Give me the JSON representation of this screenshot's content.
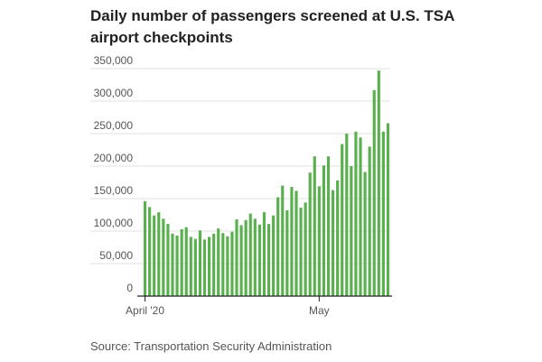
{
  "chart_data": {
    "type": "bar",
    "title": "Daily number of passengers screened at U.S. TSA airport checkpoints",
    "source": "Source: Transportation Security Administration",
    "bar_color": "#5aaf4e",
    "gridline_color": "#e2e2e2",
    "axis_color": "#222222",
    "text_color": "#555555",
    "ylim": [
      0,
      350000
    ],
    "y_ticks": [
      0,
      50000,
      100000,
      150000,
      200000,
      250000,
      300000,
      350000
    ],
    "y_tick_labels": [
      "0",
      "50,000",
      "100,000",
      "150,000",
      "200,000",
      "250,000",
      "300,000",
      "350,000"
    ],
    "x_tick_labels": [
      {
        "label": "April '20",
        "index": 0
      },
      {
        "label": "May",
        "index": 38
      }
    ],
    "dates": [
      "2020-03-31",
      "2020-04-01",
      "2020-04-02",
      "2020-04-03",
      "2020-04-04",
      "2020-04-05",
      "2020-04-06",
      "2020-04-07",
      "2020-04-08",
      "2020-04-09",
      "2020-04-10",
      "2020-04-11",
      "2020-04-12",
      "2020-04-13",
      "2020-04-14",
      "2020-04-15",
      "2020-04-16",
      "2020-04-17",
      "2020-04-18",
      "2020-04-19",
      "2020-04-20",
      "2020-04-21",
      "2020-04-22",
      "2020-04-23",
      "2020-04-24",
      "2020-04-25",
      "2020-04-26",
      "2020-04-27",
      "2020-04-28",
      "2020-04-29",
      "2020-04-30",
      "2020-05-01",
      "2020-05-02",
      "2020-05-03",
      "2020-05-04",
      "2020-05-05",
      "2020-05-06",
      "2020-05-07",
      "2020-05-08",
      "2020-05-09",
      "2020-05-10",
      "2020-05-11",
      "2020-05-12",
      "2020-05-13",
      "2020-05-14",
      "2020-05-15",
      "2020-05-16",
      "2020-05-17",
      "2020-05-18",
      "2020-05-19",
      "2020-05-20",
      "2020-05-21",
      "2020-05-22",
      "2020-05-23",
      "2020-05-24",
      "2020-05-25",
      "2020-05-26",
      "2020-05-27",
      "2020-05-28",
      "2020-05-29",
      "2020-05-30"
    ],
    "values": [
      146000,
      137000,
      124000,
      129000,
      119000,
      111000,
      96000,
      93000,
      103000,
      106000,
      91000,
      88000,
      101000,
      87000,
      91000,
      96000,
      104000,
      97000,
      92000,
      99000,
      118000,
      109000,
      117000,
      127000,
      119000,
      110000,
      129000,
      111000,
      124000,
      152000,
      170000,
      132000,
      168000,
      162000,
      136000,
      144000,
      190000,
      215000,
      169000,
      201000,
      215000,
      163000,
      178000,
      234000,
      250000,
      200000,
      253000,
      244000,
      191000,
      230000,
      317000,
      347000,
      253000,
      266000,
      0,
      0,
      0,
      0,
      0,
      0,
      0
    ]
  }
}
